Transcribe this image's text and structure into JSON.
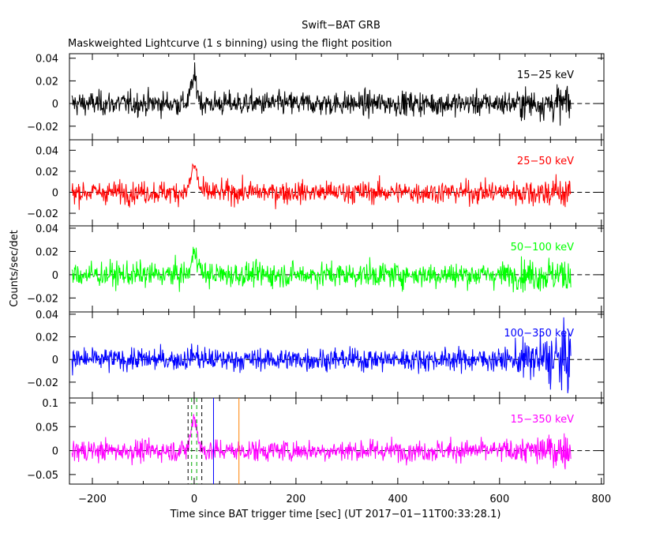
{
  "chart_data": {
    "type": "line",
    "title": "Swift−BAT GRB",
    "subtitle": "Maskweighted Lightcurve (1 s binning) using the flight position",
    "xlabel": "Time since BAT trigger time [sec] (UT 2017−01−11T00:33:28.1)",
    "ylabel": "Counts/sec/det",
    "xlim": [
      -245,
      805
    ],
    "xticks": [
      -200,
      0,
      200,
      400,
      600,
      800
    ],
    "xtick_labels": [
      "−200",
      "0",
      "200",
      "400",
      "600",
      "800"
    ],
    "data_range_x": [
      -240,
      740
    ],
    "panels": [
      {
        "band": "15−25 keV",
        "color": "#000000",
        "ylim": [
          -0.032,
          0.044
        ],
        "yticks": [
          -0.02,
          0,
          0.02,
          0.04
        ],
        "ytick_labels": [
          "−0.02",
          "0",
          "0.02",
          "0.04"
        ],
        "noise_sigma": 0.0075,
        "peak_time": 0,
        "peak_amp": 0.022
      },
      {
        "band": "25−50 keV",
        "color": "#ff0000",
        "ylim": [
          -0.032,
          0.05
        ],
        "yticks": [
          -0.02,
          0,
          0.02,
          0.04
        ],
        "ytick_labels": [
          "−0.02",
          "0",
          "0.02",
          "0.04"
        ],
        "noise_sigma": 0.0075,
        "peak_time": 0,
        "peak_amp": 0.025
      },
      {
        "band": "50−100 keV",
        "color": "#00ff00",
        "ylim": [
          -0.032,
          0.042
        ],
        "yticks": [
          -0.02,
          0,
          0.02,
          0.04
        ],
        "ytick_labels": [
          "−0.02",
          "0",
          "0.02",
          "0.04"
        ],
        "noise_sigma": 0.0075,
        "peak_time": 2,
        "peak_amp": 0.02
      },
      {
        "band": "100−350 keV",
        "color": "#0000ff",
        "ylim": [
          -0.034,
          0.042
        ],
        "yticks": [
          -0.02,
          0,
          0.02,
          0.04
        ],
        "ytick_labels": [
          "−0.02",
          "0",
          "0.02",
          "0.04"
        ],
        "noise_sigma": 0.007,
        "peak_time": 0,
        "peak_amp": 0.004
      },
      {
        "band": "15−350 keV",
        "color": "#ff00ff",
        "ylim": [
          -0.07,
          0.11
        ],
        "yticks": [
          -0.05,
          0,
          0.05,
          0.1
        ],
        "ytick_labels": [
          "−0.05",
          "0",
          "0.05",
          "0.1"
        ],
        "noise_sigma": 0.016,
        "peak_time": 0,
        "peak_amp": 0.07
      }
    ],
    "markers": [
      {
        "x": -12,
        "color": "#000000",
        "style": "dashed",
        "panel": "15−350 keV"
      },
      {
        "x": -5,
        "color": "#00aa00",
        "style": "dashed",
        "panel": "15−350 keV"
      },
      {
        "x": 5,
        "color": "#00aa00",
        "style": "dashed",
        "panel": "15−350 keV"
      },
      {
        "x": 15,
        "color": "#000000",
        "style": "dashed",
        "panel": "15−350 keV"
      },
      {
        "x": 38,
        "color": "#0000ff",
        "style": "solid",
        "panel": "15−350 keV"
      },
      {
        "x": 88,
        "color": "#ff8000",
        "style": "solid",
        "panel": "15−350 keV"
      }
    ],
    "grid": false,
    "legend": "none"
  }
}
